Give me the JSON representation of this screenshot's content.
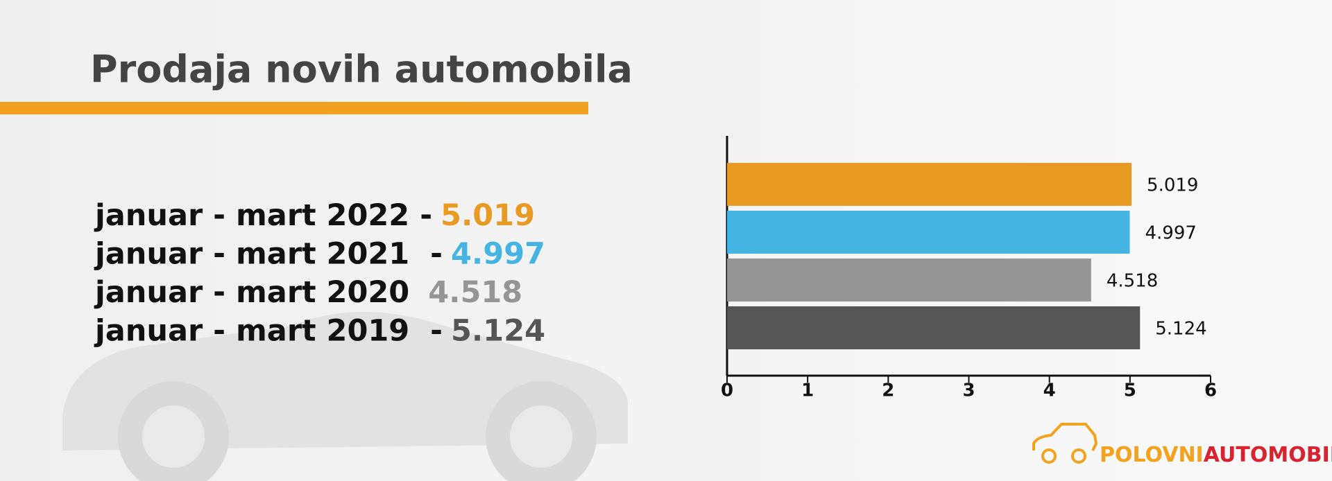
{
  "chart_data": {
    "type": "bar",
    "orientation": "horizontal",
    "title": "Prodaja novih automobila",
    "categories": [
      "januar - mart 2022 -",
      "januar - mart 2021  -",
      "januar - mart 2020 ",
      "januar - mart 2019  -"
    ],
    "values": [
      5.019,
      4.997,
      4.518,
      5.124
    ],
    "colors": [
      "#e89a22",
      "#46b4e3",
      "#959595",
      "#555555"
    ],
    "xlim": [
      0,
      6
    ],
    "xticks": [
      0,
      1,
      2,
      3,
      4,
      5,
      6
    ]
  },
  "logo": {
    "first": "POLOVNI",
    "second": "AUTOMOBILI"
  }
}
